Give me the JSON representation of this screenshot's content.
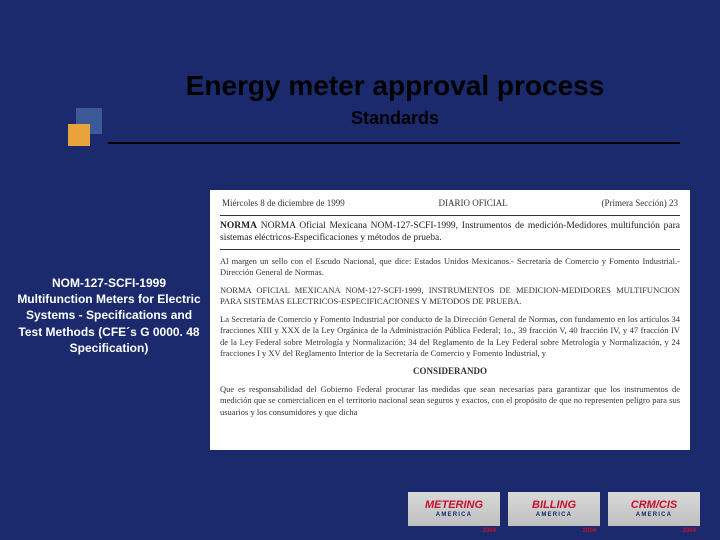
{
  "colors": {
    "background": "#1a2a6c",
    "title_text": "#000000",
    "sidebar_text": "#ffffff",
    "doc_bg": "#ffffff",
    "logo_red": "#c8102e",
    "logo_blue": "#0a2a6c",
    "square_blue": "#3c5a9a",
    "square_orange": "#e8a33d"
  },
  "title": "Energy meter approval process",
  "subtitle": "Standards",
  "sidebar": {
    "text": "NOM-127-SCFI-1999 Multifunction Meters for Electric Systems - Specifications and Test Methods (CFE´s G 0000. 48 Specification)"
  },
  "document": {
    "header_left": "Miércoles 8 de diciembre de 1999",
    "header_center": "DIARIO OFICIAL",
    "header_right": "(Primera Sección)   23",
    "norma_line": "NORMA Oficial Mexicana NOM-127-SCFI-1999, Instrumentos de medición-Medidores multifunción para sistemas eléctricos-Especificaciones y métodos de prueba.",
    "body_p1": "Al margen un sello con el Escudo Nacional, que dice: Estados Unidos Mexicanos.- Secretaría de Comercio y Fomento Industrial.- Dirección General de Normas.",
    "body_p2": "NORMA OFICIAL MEXICANA NOM-127-SCFI-1999, INSTRUMENTOS DE MEDICION-MEDIDORES MULTIFUNCION PARA SISTEMAS ELECTRICOS-ESPECIFICACIONES Y METODOS DE PRUEBA.",
    "body_p3": "La Secretaría de Comercio y Fomento Industrial por conducto de la Dirección General de Normas, con fundamento en los artículos 34 fracciones XIII y XXX de la Ley Orgánica de la Administración Pública Federal; 1o., 39 fracción V, 40 fracción IV, y 47 fracción IV de la Ley Federal sobre Metrología y Normalización; 34 del Reglamento de la Ley Federal sobre Metrología y Normalización, y 24 fracciones I y XV del Reglamento Interior de la Secretaría de Comercio y Fomento Industrial, y",
    "considerando": "CONSIDERANDO",
    "body_p4": "Que es responsabilidad del Gobierno Federal procurar las medidas que sean necesarias para garantizar que los instrumentos de medición que se comercialicen en el territorio nacional sean seguros y exactos, con el propósito de que no representen peligro para sus usuarios y los consumidores y que dicha"
  },
  "logos": [
    {
      "main": "METERING",
      "sub": "AMERICA",
      "year": "2004"
    },
    {
      "main": "BILLING",
      "sub": "AMERICA",
      "year": "2004"
    },
    {
      "main": "CRM/CIS",
      "sub": "AMERICA",
      "year": "2004"
    }
  ]
}
